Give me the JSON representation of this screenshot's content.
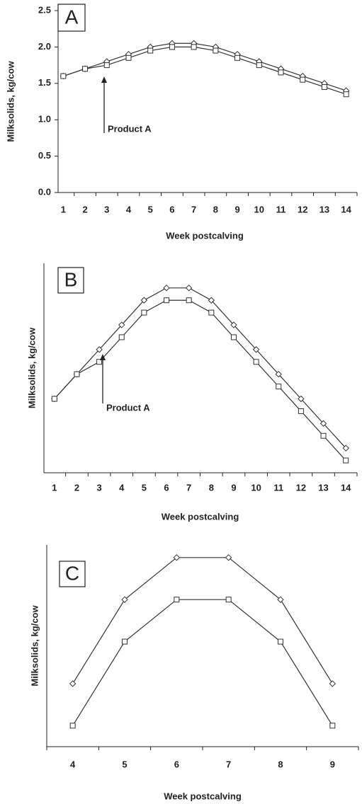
{
  "chart_data": [
    {
      "type": "line",
      "panel_label": "A",
      "annotation": "Product A",
      "ylabel": "Milksolids, kg/cow",
      "xlabel": "Week postcalving",
      "categories": [
        "1",
        "2",
        "3",
        "4",
        "5",
        "6",
        "7",
        "8",
        "9",
        "10",
        "11",
        "12",
        "13",
        "14"
      ],
      "series": [
        {
          "color": "#333333",
          "marker": "diamond",
          "values": [
            1.6,
            1.7,
            1.8,
            1.9,
            2.0,
            2.05,
            2.05,
            2.0,
            1.9,
            1.8,
            1.7,
            1.6,
            1.5,
            1.4
          ]
        },
        {
          "color": "#333333",
          "marker": "square",
          "values": [
            1.6,
            1.7,
            1.75,
            1.85,
            1.95,
            2.0,
            2.0,
            1.95,
            1.85,
            1.75,
            1.65,
            1.55,
            1.45,
            1.35
          ]
        }
      ],
      "ylim": [
        0,
        2.5
      ],
      "yticks": [
        {
          "value": 0,
          "label": "0.0"
        },
        0.5,
        {
          "value": 1,
          "label": "1.0"
        },
        1.5,
        {
          "value": 2,
          "label": "2.0"
        },
        2.5
      ]
    },
    {
      "type": "line",
      "panel_label": "B",
      "annotation": "Product A",
      "ylabel": "Milksolids, kg/cow",
      "xlabel": "Week postcalving",
      "categories": [
        "1",
        "2",
        "3",
        "4",
        "5",
        "6",
        "7",
        "8",
        "9",
        "10",
        "11",
        "12",
        "13",
        "14"
      ],
      "series": [
        {
          "color": "#333333",
          "marker": "diamond",
          "values": [
            1.6,
            1.7,
            1.8,
            1.9,
            2.0,
            2.05,
            2.05,
            2.0,
            1.9,
            1.8,
            1.7,
            1.6,
            1.5,
            1.4
          ]
        },
        {
          "color": "#333333",
          "marker": "square",
          "values": [
            1.6,
            1.7,
            1.75,
            1.85,
            1.95,
            2.0,
            2.0,
            1.95,
            1.85,
            1.75,
            1.65,
            1.55,
            1.45,
            1.35
          ]
        }
      ],
      "ylim": [
        1.3,
        2.15
      ]
    },
    {
      "type": "line",
      "panel_label": "C",
      "ylabel": "Milksolids, kg/cow",
      "xlabel": "Week postcalving",
      "categories": [
        "4",
        "5",
        "6",
        "7",
        "8",
        "9"
      ],
      "series": [
        {
          "color": "#333333",
          "marker": "diamond",
          "values": [
            1.9,
            2.0,
            2.05,
            2.05,
            2.0,
            1.9
          ]
        },
        {
          "color": "#333333",
          "marker": "square",
          "values": [
            1.85,
            1.95,
            2.0,
            2.0,
            1.95,
            1.85
          ]
        }
      ],
      "ylim": [
        1.825,
        2.065
      ]
    }
  ]
}
